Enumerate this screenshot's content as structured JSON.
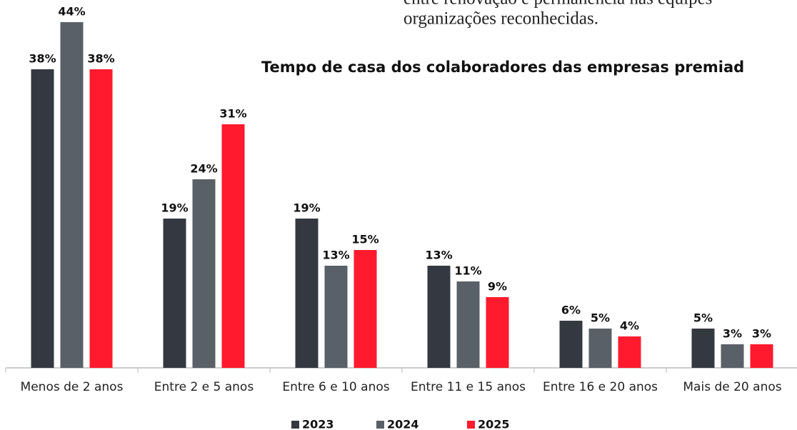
{
  "text_lines": [
    "entre renovação e permanência nas equipes",
    "organizações reconhecidas."
  ],
  "chart_data": {
    "type": "bar",
    "title": "Tempo de casa dos colaboradores das empresas premiad",
    "categories": [
      "Menos de 2 anos",
      "Entre 2 e 5 anos",
      "Entre 6 e 10 anos",
      "Entre 11 e 15 anos",
      "Entre 16 e 20 anos",
      "Mais de 20 anos"
    ],
    "series": [
      {
        "name": "2023",
        "color": "#343840",
        "values": [
          38,
          19,
          19,
          13,
          6,
          5
        ],
        "value_labels": [
          "38%",
          "19%",
          "19%",
          "13%",
          "6%",
          "5%"
        ]
      },
      {
        "name": "2024",
        "color": "#5a6068",
        "values": [
          44,
          24,
          13,
          11,
          5,
          3
        ],
        "value_labels": [
          "44%",
          "24%",
          "13%",
          "11%",
          "5%",
          "3%"
        ]
      },
      {
        "name": "2025",
        "color": "#ff1a2e",
        "values": [
          38,
          31,
          15,
          9,
          4,
          3
        ],
        "value_labels": [
          "38%",
          "31%",
          "15%",
          "9%",
          "4%",
          "3%"
        ]
      }
    ]
  }
}
